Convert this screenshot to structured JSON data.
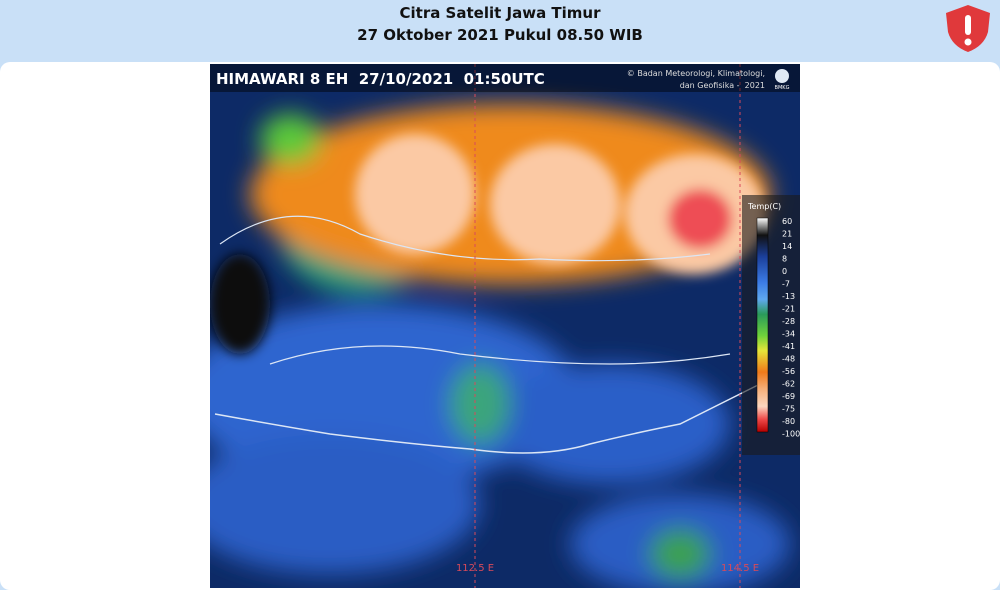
{
  "header": {
    "title": "Citra Satelit Jawa Timur",
    "subtitle": "27 Oktober 2021 Pukul 08.50 WIB"
  },
  "image": {
    "caption": "HIMAWARI 8 EH  27/10/2021  01:50UTC",
    "credit_line1": "© Badan Meteorologi, Klimatologi,",
    "credit_line2": "dan Geofisika -  2021",
    "logo": "BMKG",
    "longitude_labels": [
      "112.5 E",
      "114.5 E"
    ],
    "legend": {
      "title": "Temp(C)",
      "values": [
        60,
        21,
        14,
        8,
        0,
        -7,
        -13,
        -21,
        -28,
        -34,
        -41,
        -48,
        -56,
        -62,
        -69,
        -75,
        -80,
        -100
      ]
    }
  }
}
